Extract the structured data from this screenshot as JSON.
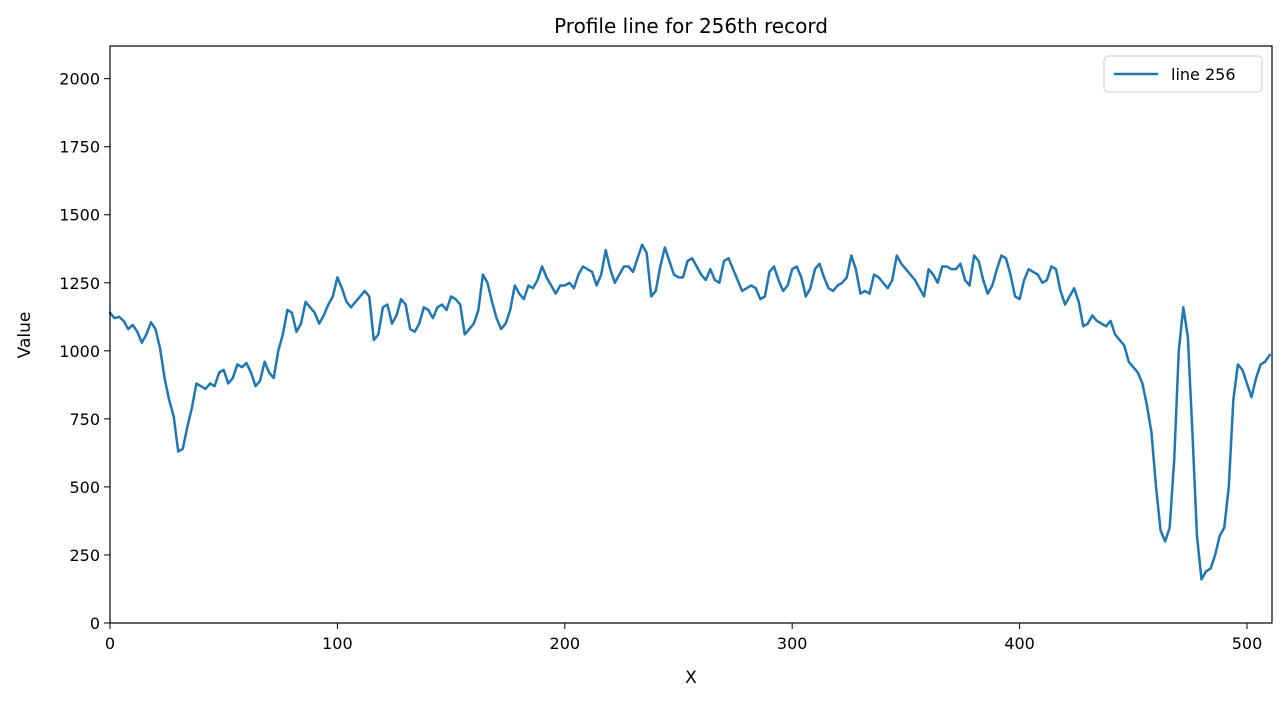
{
  "chart_data": {
    "type": "line",
    "title": "Profile line for 256th record",
    "xlabel": "X",
    "ylabel": "Value",
    "xlim": [
      0,
      511
    ],
    "ylim": [
      0,
      2120
    ],
    "xticks": [
      0,
      100,
      200,
      300,
      400,
      500
    ],
    "yticks": [
      0,
      250,
      500,
      750,
      1000,
      1250,
      1500,
      1750,
      2000
    ],
    "grid": false,
    "legend": "top-right",
    "series": [
      {
        "name": "line 256",
        "color": "#1f77b4",
        "points": [
          [
            0,
            1140
          ],
          [
            2,
            1120
          ],
          [
            4,
            1125
          ],
          [
            6,
            1110
          ],
          [
            8,
            1080
          ],
          [
            10,
            1095
          ],
          [
            12,
            1070
          ],
          [
            14,
            1030
          ],
          [
            16,
            1060
          ],
          [
            18,
            1105
          ],
          [
            20,
            1080
          ],
          [
            22,
            1010
          ],
          [
            24,
            900
          ],
          [
            26,
            820
          ],
          [
            28,
            760
          ],
          [
            30,
            630
          ],
          [
            32,
            640
          ],
          [
            34,
            720
          ],
          [
            36,
            790
          ],
          [
            38,
            880
          ],
          [
            40,
            870
          ],
          [
            42,
            860
          ],
          [
            44,
            880
          ],
          [
            46,
            870
          ],
          [
            48,
            920
          ],
          [
            50,
            930
          ],
          [
            52,
            880
          ],
          [
            54,
            900
          ],
          [
            56,
            950
          ],
          [
            58,
            940
          ],
          [
            60,
            955
          ],
          [
            62,
            920
          ],
          [
            64,
            870
          ],
          [
            66,
            890
          ],
          [
            68,
            960
          ],
          [
            70,
            920
          ],
          [
            72,
            900
          ],
          [
            74,
            1000
          ],
          [
            76,
            1060
          ],
          [
            78,
            1150
          ],
          [
            80,
            1140
          ],
          [
            82,
            1070
          ],
          [
            84,
            1100
          ],
          [
            86,
            1180
          ],
          [
            88,
            1160
          ],
          [
            90,
            1140
          ],
          [
            92,
            1100
          ],
          [
            94,
            1130
          ],
          [
            96,
            1170
          ],
          [
            98,
            1200
          ],
          [
            100,
            1270
          ],
          [
            102,
            1230
          ],
          [
            104,
            1180
          ],
          [
            106,
            1160
          ],
          [
            108,
            1180
          ],
          [
            110,
            1200
          ],
          [
            112,
            1220
          ],
          [
            114,
            1200
          ],
          [
            116,
            1040
          ],
          [
            118,
            1060
          ],
          [
            120,
            1160
          ],
          [
            122,
            1170
          ],
          [
            124,
            1100
          ],
          [
            126,
            1130
          ],
          [
            128,
            1190
          ],
          [
            130,
            1170
          ],
          [
            132,
            1080
          ],
          [
            134,
            1070
          ],
          [
            136,
            1100
          ],
          [
            138,
            1160
          ],
          [
            140,
            1150
          ],
          [
            142,
            1120
          ],
          [
            144,
            1160
          ],
          [
            146,
            1170
          ],
          [
            148,
            1150
          ],
          [
            150,
            1200
          ],
          [
            152,
            1190
          ],
          [
            154,
            1170
          ],
          [
            156,
            1060
          ],
          [
            158,
            1080
          ],
          [
            160,
            1100
          ],
          [
            162,
            1150
          ],
          [
            164,
            1280
          ],
          [
            166,
            1250
          ],
          [
            168,
            1180
          ],
          [
            170,
            1120
          ],
          [
            172,
            1080
          ],
          [
            174,
            1100
          ],
          [
            176,
            1150
          ],
          [
            178,
            1240
          ],
          [
            180,
            1210
          ],
          [
            182,
            1190
          ],
          [
            184,
            1240
          ],
          [
            186,
            1230
          ],
          [
            188,
            1260
          ],
          [
            190,
            1310
          ],
          [
            192,
            1270
          ],
          [
            194,
            1240
          ],
          [
            196,
            1210
          ],
          [
            198,
            1240
          ],
          [
            200,
            1240
          ],
          [
            202,
            1250
          ],
          [
            204,
            1230
          ],
          [
            206,
            1280
          ],
          [
            208,
            1310
          ],
          [
            210,
            1300
          ],
          [
            212,
            1290
          ],
          [
            214,
            1240
          ],
          [
            216,
            1280
          ],
          [
            218,
            1370
          ],
          [
            220,
            1300
          ],
          [
            222,
            1250
          ],
          [
            224,
            1280
          ],
          [
            226,
            1310
          ],
          [
            228,
            1310
          ],
          [
            230,
            1290
          ],
          [
            232,
            1340
          ],
          [
            234,
            1390
          ],
          [
            236,
            1360
          ],
          [
            238,
            1200
          ],
          [
            240,
            1220
          ],
          [
            242,
            1310
          ],
          [
            244,
            1380
          ],
          [
            246,
            1330
          ],
          [
            248,
            1280
          ],
          [
            250,
            1270
          ],
          [
            252,
            1270
          ],
          [
            254,
            1330
          ],
          [
            256,
            1340
          ],
          [
            258,
            1310
          ],
          [
            260,
            1280
          ],
          [
            262,
            1260
          ],
          [
            264,
            1300
          ],
          [
            266,
            1260
          ],
          [
            268,
            1250
          ],
          [
            270,
            1330
          ],
          [
            272,
            1340
          ],
          [
            274,
            1300
          ],
          [
            276,
            1260
          ],
          [
            278,
            1220
          ],
          [
            280,
            1230
          ],
          [
            282,
            1240
          ],
          [
            284,
            1230
          ],
          [
            286,
            1190
          ],
          [
            288,
            1200
          ],
          [
            290,
            1290
          ],
          [
            292,
            1310
          ],
          [
            294,
            1260
          ],
          [
            296,
            1220
          ],
          [
            298,
            1240
          ],
          [
            300,
            1300
          ],
          [
            302,
            1310
          ],
          [
            304,
            1270
          ],
          [
            306,
            1200
          ],
          [
            308,
            1230
          ],
          [
            310,
            1300
          ],
          [
            312,
            1320
          ],
          [
            314,
            1270
          ],
          [
            316,
            1230
          ],
          [
            318,
            1220
          ],
          [
            320,
            1240
          ],
          [
            322,
            1250
          ],
          [
            324,
            1270
          ],
          [
            326,
            1350
          ],
          [
            328,
            1300
          ],
          [
            330,
            1210
          ],
          [
            332,
            1220
          ],
          [
            334,
            1210
          ],
          [
            336,
            1280
          ],
          [
            338,
            1270
          ],
          [
            340,
            1250
          ],
          [
            342,
            1230
          ],
          [
            344,
            1260
          ],
          [
            346,
            1350
          ],
          [
            348,
            1320
          ],
          [
            350,
            1300
          ],
          [
            352,
            1280
          ],
          [
            354,
            1260
          ],
          [
            356,
            1230
          ],
          [
            358,
            1200
          ],
          [
            360,
            1300
          ],
          [
            362,
            1280
          ],
          [
            364,
            1250
          ],
          [
            366,
            1310
          ],
          [
            368,
            1310
          ],
          [
            370,
            1300
          ],
          [
            372,
            1300
          ],
          [
            374,
            1320
          ],
          [
            376,
            1260
          ],
          [
            378,
            1240
          ],
          [
            380,
            1350
          ],
          [
            382,
            1330
          ],
          [
            384,
            1260
          ],
          [
            386,
            1210
          ],
          [
            388,
            1240
          ],
          [
            390,
            1300
          ],
          [
            392,
            1350
          ],
          [
            394,
            1340
          ],
          [
            396,
            1280
          ],
          [
            398,
            1200
          ],
          [
            400,
            1190
          ],
          [
            402,
            1260
          ],
          [
            404,
            1300
          ],
          [
            406,
            1290
          ],
          [
            408,
            1280
          ],
          [
            410,
            1250
          ],
          [
            412,
            1260
          ],
          [
            414,
            1310
          ],
          [
            416,
            1300
          ],
          [
            418,
            1220
          ],
          [
            420,
            1170
          ],
          [
            422,
            1200
          ],
          [
            424,
            1230
          ],
          [
            426,
            1180
          ],
          [
            428,
            1090
          ],
          [
            430,
            1100
          ],
          [
            432,
            1130
          ],
          [
            434,
            1110
          ],
          [
            436,
            1100
          ],
          [
            438,
            1090
          ],
          [
            440,
            1110
          ],
          [
            442,
            1060
          ],
          [
            444,
            1040
          ],
          [
            446,
            1020
          ],
          [
            448,
            960
          ],
          [
            450,
            940
          ],
          [
            452,
            920
          ],
          [
            454,
            880
          ],
          [
            456,
            800
          ],
          [
            458,
            700
          ],
          [
            460,
            500
          ],
          [
            462,
            340
          ],
          [
            464,
            300
          ],
          [
            466,
            350
          ],
          [
            468,
            600
          ],
          [
            470,
            1000
          ],
          [
            472,
            1160
          ],
          [
            474,
            1050
          ],
          [
            476,
            700
          ],
          [
            478,
            320
          ],
          [
            480,
            160
          ],
          [
            482,
            190
          ],
          [
            484,
            200
          ],
          [
            486,
            250
          ],
          [
            488,
            320
          ],
          [
            490,
            350
          ],
          [
            492,
            500
          ],
          [
            494,
            820
          ],
          [
            496,
            950
          ],
          [
            498,
            930
          ],
          [
            500,
            880
          ],
          [
            502,
            830
          ],
          [
            504,
            900
          ],
          [
            506,
            950
          ],
          [
            508,
            960
          ],
          [
            510,
            985
          ]
        ]
      }
    ]
  }
}
